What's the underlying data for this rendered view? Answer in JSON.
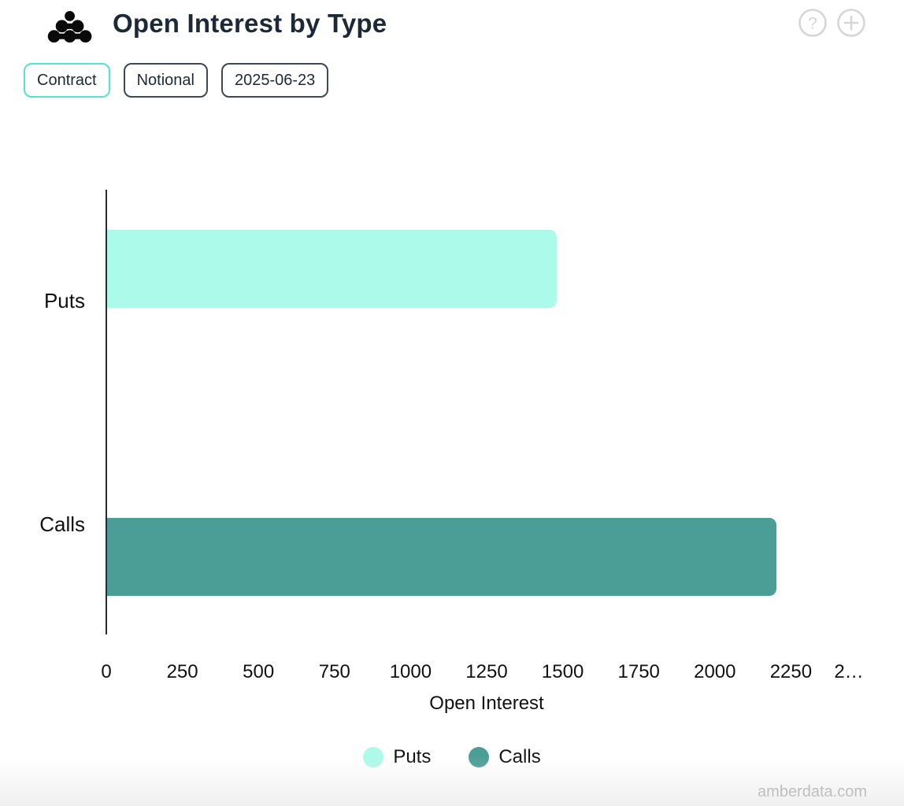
{
  "header": {
    "title": "Open Interest by Type",
    "logo": "amberdata-logo",
    "help_label": "?",
    "add_label": "+"
  },
  "toolbar": {
    "buttons": [
      {
        "label": "Contract",
        "active": true
      },
      {
        "label": "Notional",
        "active": false
      },
      {
        "label": "2025-06-23",
        "active": false
      }
    ]
  },
  "chart_data": {
    "type": "bar",
    "orientation": "horizontal",
    "title": "Open Interest by Type",
    "categories": [
      "Puts",
      "Calls"
    ],
    "series": [
      {
        "name": "Puts",
        "value": 1478,
        "color": "#abfaea"
      },
      {
        "name": "Calls",
        "value": 2200,
        "color": "#4a9e96"
      }
    ],
    "xlabel": "Open Interest",
    "xlim": [
      0,
      2500
    ],
    "x_ticks": [
      {
        "label": "0",
        "value": 0
      },
      {
        "label": "250",
        "value": 250
      },
      {
        "label": "500",
        "value": 500
      },
      {
        "label": "750",
        "value": 750
      },
      {
        "label": "1000",
        "value": 1000
      },
      {
        "label": "1250",
        "value": 1250
      },
      {
        "label": "1500",
        "value": 1500
      },
      {
        "label": "1750",
        "value": 1750
      },
      {
        "label": "2000",
        "value": 2000
      },
      {
        "label": "2250",
        "value": 2250
      },
      {
        "label": "2…",
        "value": 2500
      }
    ],
    "grid": false,
    "legend_position": "bottom",
    "legend": [
      {
        "label": "Puts",
        "color": "#abfaea"
      },
      {
        "label": "Calls",
        "color": "#4a9e96"
      }
    ]
  },
  "watermark": "amberdata.com",
  "colors": {
    "accent_teal": "#57e3ca",
    "dark_navy": "#1d2936",
    "puts": "#abfaea",
    "calls": "#4a9e96",
    "axis": "#2b2b2b",
    "muted_icon": "#d6d6d6",
    "watermark": "#a6a6a6"
  }
}
